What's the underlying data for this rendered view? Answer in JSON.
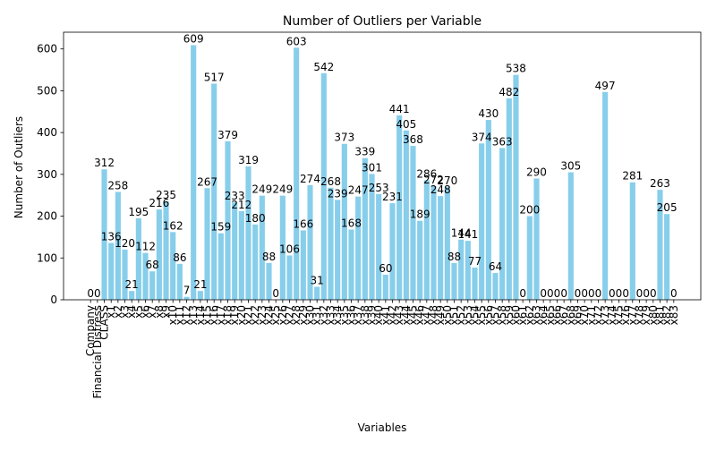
{
  "chart_data": {
    "type": "bar",
    "title": "Number of Outliers per Variable",
    "xlabel": "Variables",
    "ylabel": "Number of Outliers",
    "ylim": [
      0,
      640
    ],
    "yticks": [
      0,
      100,
      200,
      300,
      400,
      500,
      600
    ],
    "grid": false,
    "bar_color": "#87ceeb",
    "categories": [
      "Company",
      "Financial Distress",
      "CLASS",
      "x1",
      "x2",
      "x3",
      "x4",
      "x5",
      "x6",
      "x7",
      "x8",
      "x9",
      "x10",
      "x11",
      "x12",
      "x13",
      "x14",
      "x15",
      "x16",
      "x17",
      "x18",
      "x19",
      "x20",
      "x21",
      "x22",
      "x23",
      "x24",
      "x25",
      "x26",
      "x27",
      "x28",
      "x29",
      "x30",
      "x31",
      "x32",
      "x33",
      "x34",
      "x35",
      "x36",
      "x37",
      "x38",
      "x39",
      "x40",
      "x41",
      "x42",
      "x43",
      "x44",
      "x45",
      "x46",
      "x47",
      "x48",
      "x49",
      "x50",
      "x51",
      "x52",
      "x53",
      "x54",
      "x55",
      "x56",
      "x57",
      "x58",
      "x59",
      "x60",
      "x61",
      "x62",
      "x63",
      "x64",
      "x65",
      "x66",
      "x67",
      "x68",
      "x69",
      "x70",
      "x71",
      "x72",
      "x73",
      "x74",
      "x75",
      "x76",
      "x77",
      "x78",
      "x79",
      "x80",
      "x81",
      "x82",
      "x83"
    ],
    "values": [
      0,
      0,
      312,
      136,
      258,
      120,
      21,
      195,
      112,
      68,
      216,
      235,
      162,
      86,
      7,
      609,
      21,
      267,
      517,
      159,
      379,
      233,
      212,
      319,
      180,
      249,
      88,
      0,
      249,
      106,
      603,
      166,
      274,
      31,
      542,
      268,
      239,
      373,
      168,
      247,
      339,
      301,
      253,
      60,
      231,
      441,
      405,
      368,
      189,
      286,
      272,
      248,
      270,
      88,
      144,
      141,
      77,
      374,
      430,
      64,
      363,
      482,
      538,
      0,
      200,
      290,
      0,
      0,
      0,
      0,
      305,
      0,
      0,
      0,
      0,
      497,
      0,
      0,
      0,
      281,
      0,
      0,
      0,
      263,
      205,
      0
    ]
  }
}
